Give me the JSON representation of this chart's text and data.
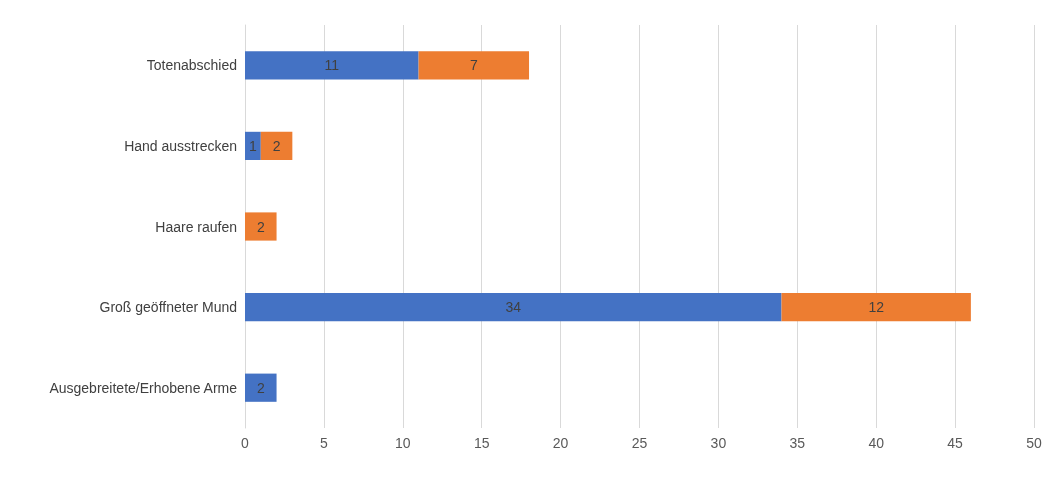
{
  "chart_data": {
    "type": "bar",
    "orientation": "horizontal",
    "stacked": true,
    "categories": [
      "Totenabschied",
      "Hand ausstrecken",
      "Haare raufen",
      "Groß geöffneter Mund",
      "Ausgebreitete/Erhobene Arme"
    ],
    "series": [
      {
        "color": "#4472c4",
        "values": [
          11,
          1,
          null,
          34,
          2
        ]
      },
      {
        "color": "#ed7d31",
        "values": [
          7,
          2,
          2,
          12,
          null
        ]
      }
    ],
    "xlim": [
      0,
      50
    ],
    "xticks": [
      0,
      5,
      10,
      15,
      20,
      25,
      30,
      35,
      40,
      45,
      50
    ],
    "grid": "x",
    "data_labels": true
  }
}
